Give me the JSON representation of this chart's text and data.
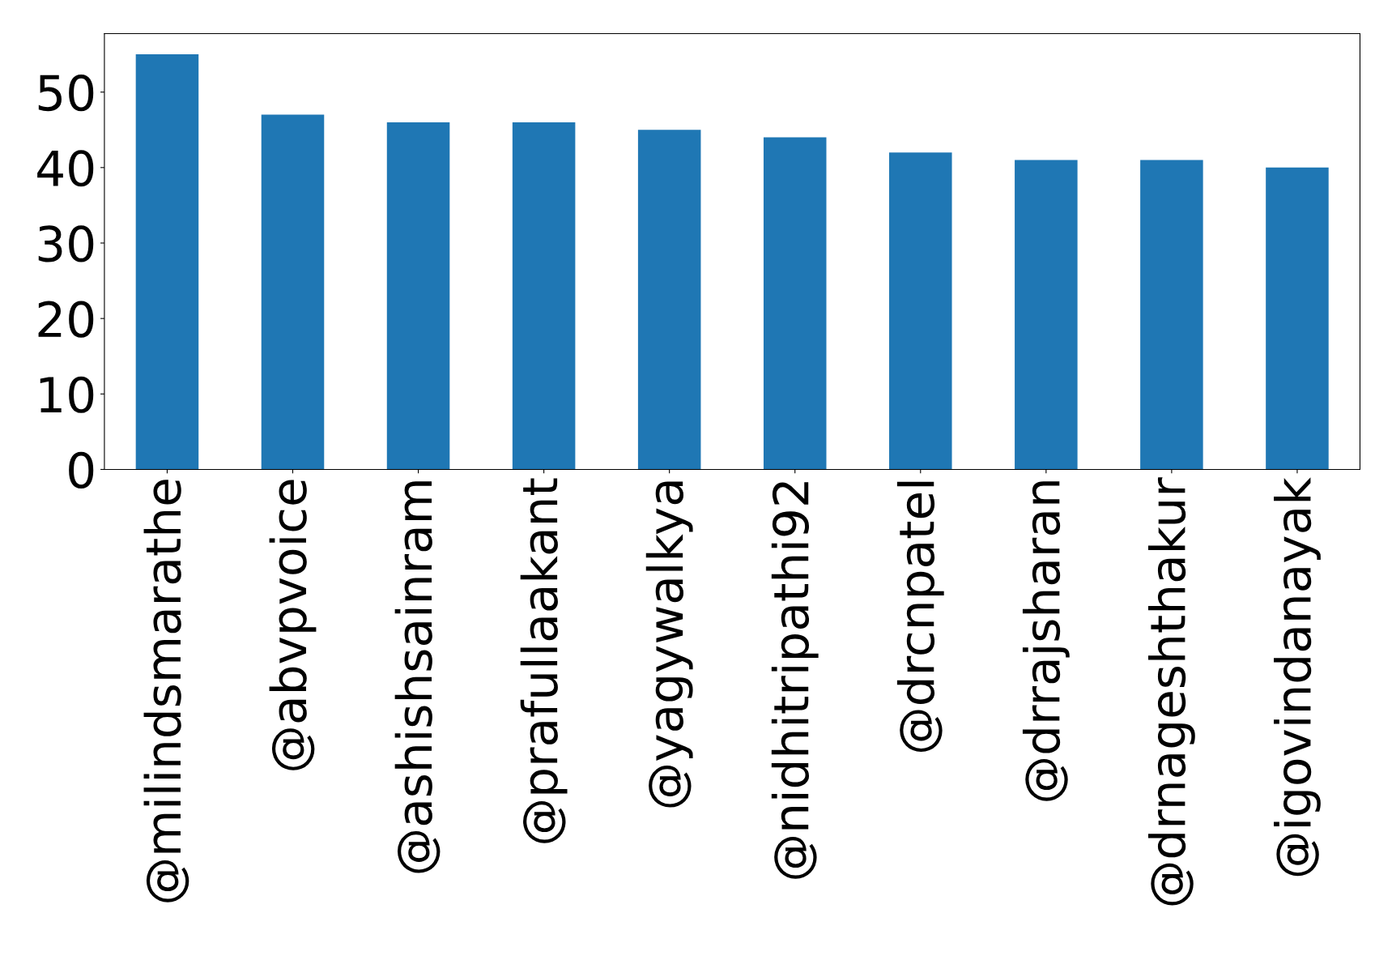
{
  "chart_data": {
    "type": "bar",
    "categories": [
      "@milindsmarathe",
      "@abvpvoice",
      "@ashishsainram",
      "@prafullaakant",
      "@yagywalkya",
      "@nidhitripathi92",
      "@drcnpatel",
      "@drrajsharan",
      "@drnageshthakur",
      "@igovindanayak"
    ],
    "values": [
      55,
      47,
      46,
      46,
      45,
      44,
      42,
      41,
      41,
      40
    ],
    "color": "#1f77b4",
    "ylim": [
      0,
      57.75
    ],
    "yticks": [
      0,
      10,
      20,
      30,
      40,
      50
    ],
    "grid": false,
    "legend": false
  }
}
